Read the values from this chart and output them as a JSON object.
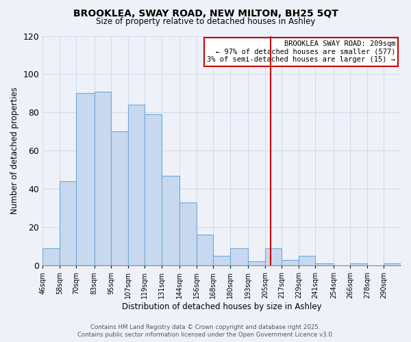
{
  "title": "BROOKLEA, SWAY ROAD, NEW MILTON, BH25 5QT",
  "subtitle": "Size of property relative to detached houses in Ashley",
  "xlabel": "Distribution of detached houses by size in Ashley",
  "ylabel": "Number of detached properties",
  "bin_labels": [
    "46sqm",
    "58sqm",
    "70sqm",
    "83sqm",
    "95sqm",
    "107sqm",
    "119sqm",
    "131sqm",
    "144sqm",
    "156sqm",
    "168sqm",
    "180sqm",
    "193sqm",
    "205sqm",
    "217sqm",
    "229sqm",
    "241sqm",
    "254sqm",
    "266sqm",
    "278sqm",
    "290sqm"
  ],
  "bin_edges": [
    46,
    58,
    70,
    83,
    95,
    107,
    119,
    131,
    144,
    156,
    168,
    180,
    193,
    205,
    217,
    229,
    241,
    254,
    266,
    278,
    290
  ],
  "bar_heights": [
    9,
    44,
    90,
    91,
    70,
    84,
    79,
    47,
    33,
    16,
    5,
    9,
    2,
    9,
    3,
    5,
    1,
    0,
    1,
    0,
    1
  ],
  "bar_color": "#c8d8ee",
  "bar_edge_color": "#6baad8",
  "grid_color": "#d0dcee",
  "property_line_x": 209,
  "property_line_color": "#cc0000",
  "annotation_title": "BROOKLEA SWAY ROAD: 209sqm",
  "annotation_line1": "← 97% of detached houses are smaller (577)",
  "annotation_line2": "3% of semi-detached houses are larger (15) →",
  "annotation_box_facecolor": "#ffffff",
  "annotation_box_edgecolor": "#cc0000",
  "ylim": [
    0,
    120
  ],
  "yticks": [
    0,
    20,
    40,
    60,
    80,
    100,
    120
  ],
  "footer1": "Contains HM Land Registry data © Crown copyright and database right 2025.",
  "footer2": "Contains public sector information licensed under the Open Government Licence v3.0.",
  "background_color": "#eef2f8"
}
